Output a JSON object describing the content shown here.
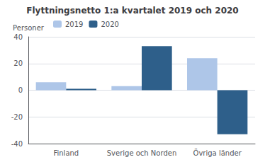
{
  "chart_data": {
    "type": "bar",
    "title": "Flyttningsnetto 1:a kvartalet 2019 och 2020",
    "ylabel": "Personer",
    "categories": [
      "Finland",
      "Sverige och Norden",
      "Övriga länder"
    ],
    "series": [
      {
        "name": "2019",
        "color": "#aec6e8",
        "values": [
          6,
          3,
          24
        ]
      },
      {
        "name": "2020",
        "color": "#2e5f8a",
        "values": [
          1,
          33,
          -33
        ]
      }
    ],
    "ylim": [
      -40,
      40
    ],
    "yticks": [
      -40,
      -20,
      0,
      20,
      40
    ],
    "grid": true,
    "legend": "upper left"
  }
}
